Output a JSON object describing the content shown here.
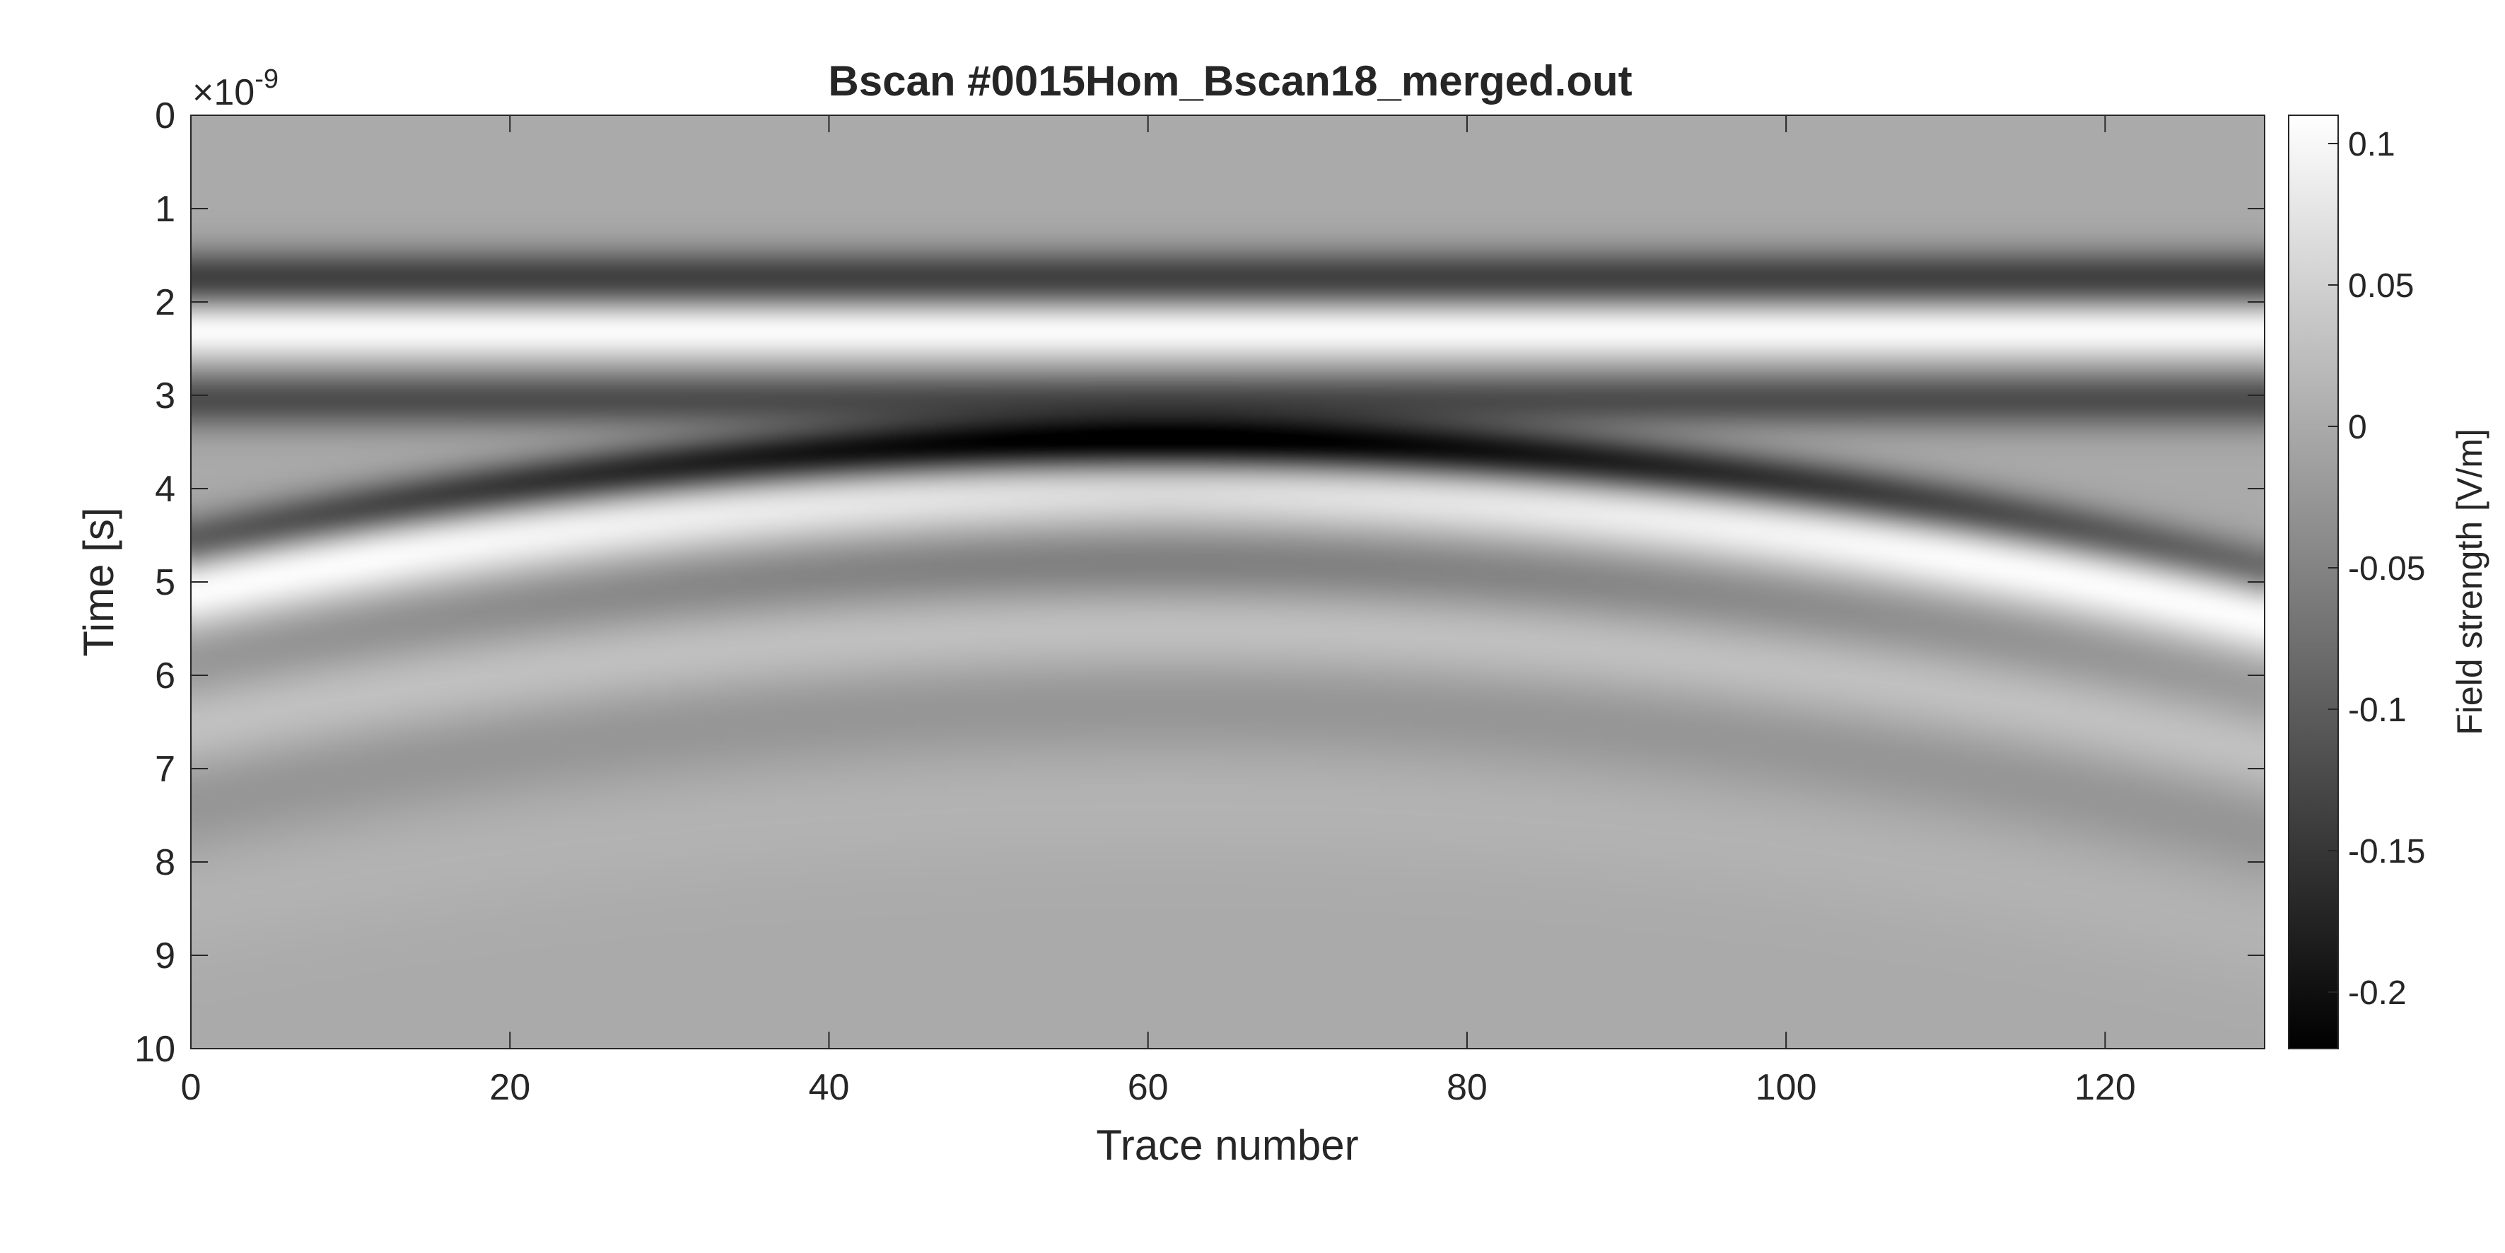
{
  "chart_data": {
    "type": "heatmap",
    "title": "Bscan #0015Hom_Bscan18_merged.out",
    "xlabel": "Trace number",
    "ylabel": "Time [s]",
    "y_exponent_base": "×10",
    "y_exponent_power": "-9",
    "colorbar_label": "Field strength [V/m]",
    "colormap": "gray",
    "xlim": [
      0,
      130
    ],
    "ylim_ns": [
      0,
      10
    ],
    "y_reversed": true,
    "clim": [
      -0.22,
      0.11
    ],
    "x_ticks": [
      0,
      20,
      40,
      60,
      80,
      100,
      120
    ],
    "x_tick_labels": [
      "0",
      "20",
      "40",
      "60",
      "80",
      "100",
      "120"
    ],
    "y_ticks": [
      0,
      1,
      2,
      3,
      4,
      5,
      6,
      7,
      8,
      9,
      10
    ],
    "y_tick_labels": [
      "0",
      "1",
      "2",
      "3",
      "4",
      "5",
      "6",
      "7",
      "8",
      "9",
      "10"
    ],
    "colorbar_ticks": [
      0.1,
      0.05,
      0,
      -0.05,
      -0.1,
      -0.15,
      -0.2
    ],
    "colorbar_tick_labels": [
      "0.1",
      "0.05",
      "0",
      "-0.05",
      "-0.1",
      "-0.15",
      "-0.2"
    ],
    "grid": false,
    "features": {
      "direct_wave": [
        {
          "time_ns": 1.75,
          "value": -0.14
        },
        {
          "time_ns": 2.3,
          "value": 0.11
        },
        {
          "time_ns": 3.05,
          "value": -0.12
        }
      ],
      "hyperbola": {
        "apex_trace": 61,
        "apex_time_ns": 3.5,
        "peak_negative": -0.22,
        "peak_positive": 0.11,
        "edge_time_ns": 4.6
      }
    }
  }
}
